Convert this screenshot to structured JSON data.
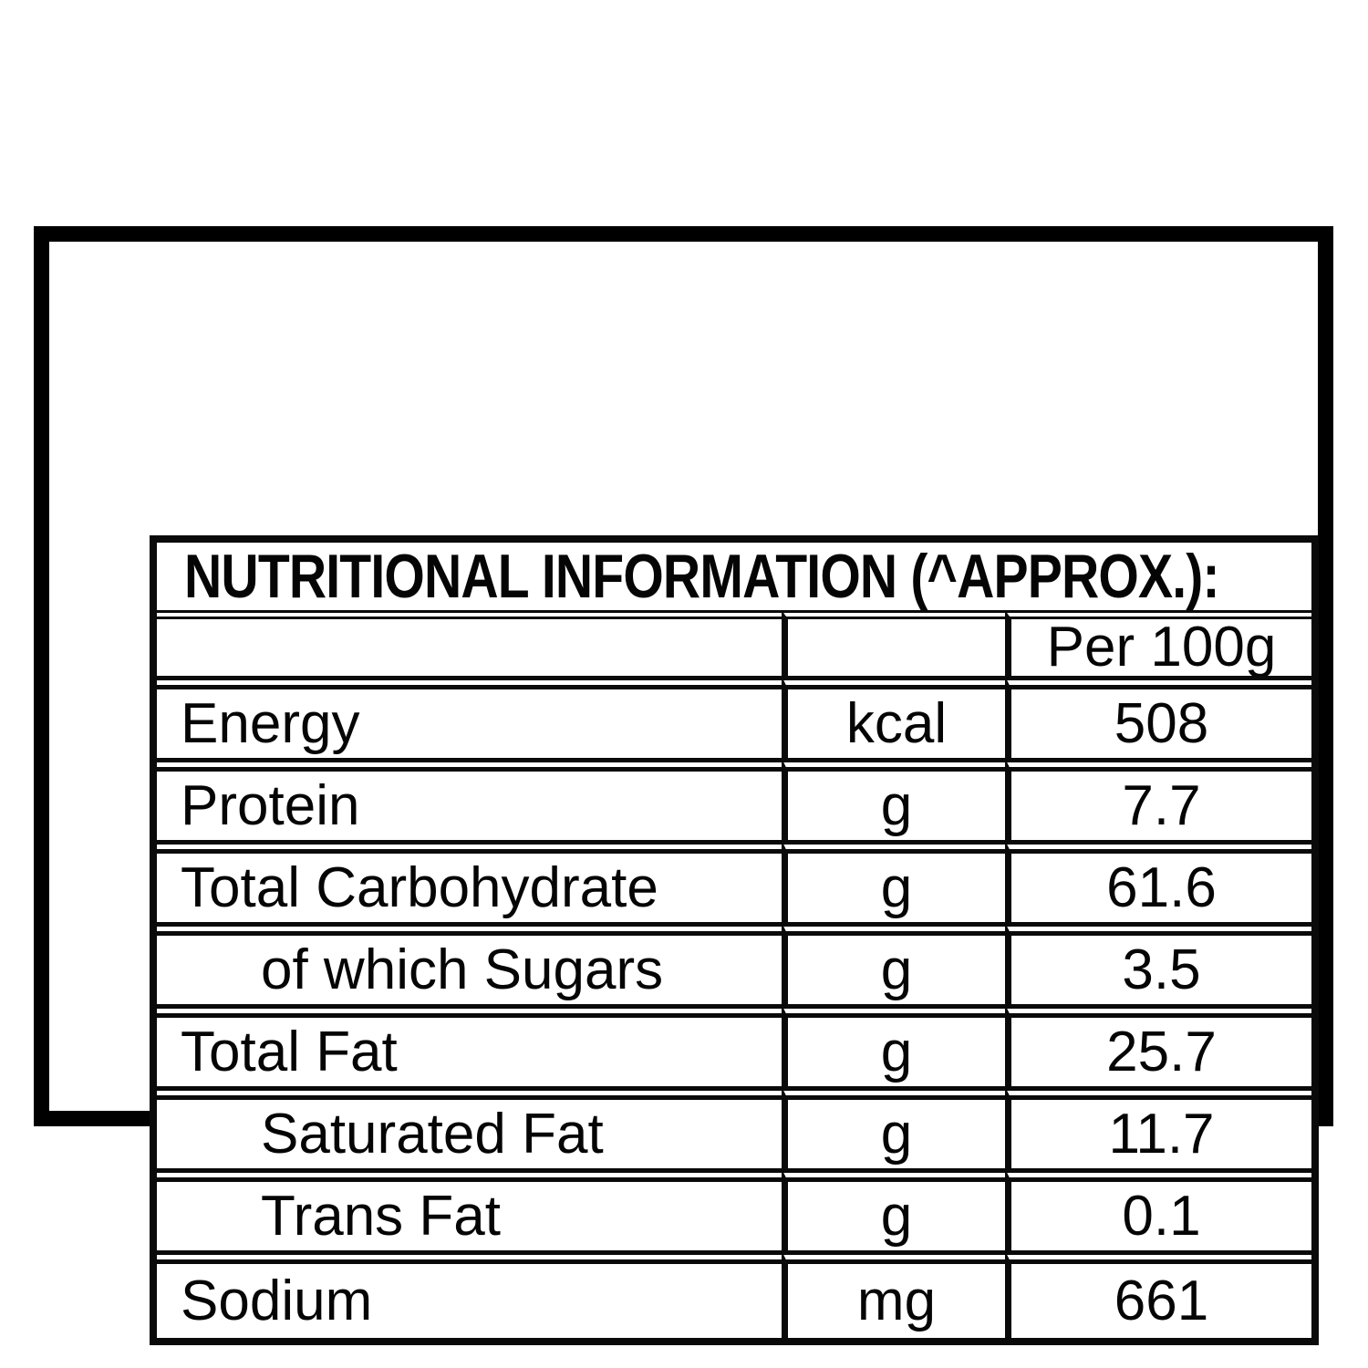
{
  "table": {
    "title": "NUTRITIONAL INFORMATION (^APPROX.):",
    "header": {
      "col1": "",
      "col2": "",
      "col3": "Per 100g"
    },
    "rows": [
      {
        "label": "Energy",
        "unit": "kcal",
        "value": "508",
        "indent": false
      },
      {
        "label": "Protein",
        "unit": "g",
        "value": "7.7",
        "indent": false
      },
      {
        "label": "Total Carbohydrate",
        "unit": "g",
        "value": "61.6",
        "indent": false
      },
      {
        "label": "of which Sugars",
        "unit": "g",
        "value": "3.5",
        "indent": true
      },
      {
        "label": "Total Fat",
        "unit": "g",
        "value": "25.7",
        "indent": false
      },
      {
        "label": "Saturated Fat",
        "unit": "g",
        "value": "11.7",
        "indent": true
      },
      {
        "label": "Trans Fat",
        "unit": "g",
        "value": "0.1",
        "indent": true
      },
      {
        "label": "Sodium",
        "unit": "mg",
        "value": "661",
        "indent": false
      }
    ],
    "colors": {
      "border": "#000000",
      "text": "#050505",
      "background": "#ffffff"
    }
  }
}
